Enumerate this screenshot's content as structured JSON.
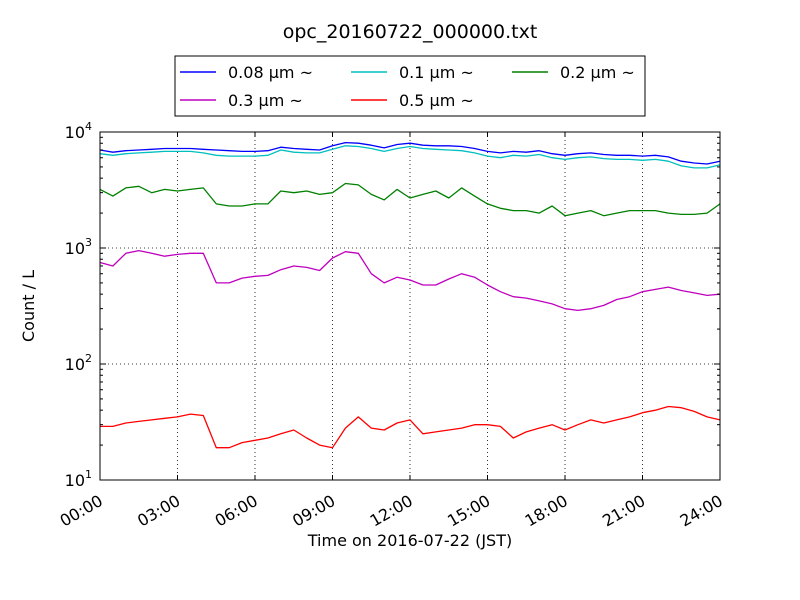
{
  "chart_data": {
    "type": "line",
    "title": "opc_20160722_000000.txt",
    "xlabel": "Time on 2016-07-22 (JST)",
    "ylabel": "Count / L",
    "xlim": [
      "00:00",
      "24:00"
    ],
    "ylim": [
      10,
      10000
    ],
    "yscale": "log",
    "grid": true,
    "legend": "top-center",
    "x_ticks": [
      "00:00",
      "03:00",
      "06:00",
      "09:00",
      "12:00",
      "15:00",
      "18:00",
      "21:00",
      "24:00"
    ],
    "y_ticks": [
      {
        "value": 10,
        "base": "10",
        "exp": "1"
      },
      {
        "value": 100,
        "base": "10",
        "exp": "2"
      },
      {
        "value": 1000,
        "base": "10",
        "exp": "3"
      },
      {
        "value": 10000,
        "base": "10",
        "exp": "4"
      }
    ],
    "x_hours": [
      0,
      0.5,
      1,
      1.5,
      2,
      2.5,
      3,
      3.5,
      4,
      4.5,
      5,
      5.5,
      6,
      6.5,
      7,
      7.5,
      8,
      8.5,
      9,
      9.5,
      10,
      10.5,
      11,
      11.5,
      12,
      12.5,
      13,
      13.5,
      14,
      14.5,
      15,
      15.5,
      16,
      16.5,
      17,
      17.5,
      18,
      18.5,
      19,
      19.5,
      20,
      20.5,
      21,
      21.5,
      22,
      22.5,
      23,
      23.5,
      24
    ],
    "series": [
      {
        "name": "0.08 μm ~",
        "color": "#0000ff",
        "values": [
          7000,
          6700,
          6900,
          7000,
          7100,
          7200,
          7200,
          7200,
          7100,
          7000,
          6900,
          6800,
          6800,
          6900,
          7400,
          7200,
          7100,
          7000,
          7600,
          8100,
          8000,
          7700,
          7300,
          7800,
          8000,
          7700,
          7600,
          7600,
          7500,
          7200,
          6800,
          6600,
          6800,
          6700,
          6900,
          6500,
          6300,
          6500,
          6600,
          6400,
          6300,
          6300,
          6200,
          6300,
          6100,
          5600,
          5400,
          5300,
          5600
        ]
      },
      {
        "name": "0.1 μm ~",
        "color": "#00bfbf",
        "values": [
          6500,
          6300,
          6500,
          6600,
          6700,
          6800,
          6800,
          6800,
          6600,
          6300,
          6200,
          6200,
          6200,
          6300,
          7000,
          6700,
          6600,
          6600,
          7100,
          7600,
          7500,
          7200,
          6800,
          7200,
          7500,
          7200,
          7100,
          7000,
          6900,
          6600,
          6200,
          6000,
          6300,
          6200,
          6400,
          6000,
          5800,
          6000,
          6100,
          5900,
          5800,
          5800,
          5700,
          5800,
          5600,
          5100,
          4900,
          4900,
          5200
        ]
      },
      {
        "name": "0.2 μm ~",
        "color": "#008000",
        "values": [
          3200,
          2800,
          3300,
          3400,
          3000,
          3200,
          3100,
          3200,
          3300,
          2400,
          2300,
          2300,
          2400,
          2400,
          3100,
          3000,
          3100,
          2900,
          3000,
          3600,
          3500,
          2900,
          2600,
          3200,
          2700,
          2900,
          3100,
          2700,
          3300,
          2800,
          2400,
          2200,
          2100,
          2100,
          2000,
          2300,
          1900,
          2000,
          2100,
          1900,
          2000,
          2100,
          2100,
          2100,
          2000,
          1950,
          1950,
          2000,
          2400
        ]
      },
      {
        "name": "0.3 μm ~",
        "color": "#bf00bf",
        "values": [
          750,
          700,
          900,
          950,
          900,
          850,
          880,
          900,
          900,
          500,
          500,
          550,
          570,
          580,
          650,
          700,
          680,
          640,
          820,
          930,
          900,
          600,
          500,
          560,
          530,
          480,
          480,
          540,
          600,
          560,
          480,
          420,
          380,
          370,
          350,
          330,
          300,
          290,
          300,
          320,
          360,
          380,
          420,
          440,
          460,
          430,
          410,
          390,
          400
        ]
      },
      {
        "name": "0.5 μm ~",
        "color": "#ff0000",
        "values": [
          29,
          29,
          31,
          32,
          33,
          34,
          35,
          37,
          36,
          19,
          19,
          21,
          22,
          23,
          25,
          27,
          23,
          20,
          19,
          28,
          35,
          28,
          27,
          31,
          33,
          25,
          26,
          27,
          28,
          30,
          30,
          29,
          23,
          26,
          28,
          30,
          27,
          30,
          33,
          31,
          33,
          35,
          38,
          40,
          43,
          42,
          39,
          35,
          33
        ]
      }
    ]
  }
}
